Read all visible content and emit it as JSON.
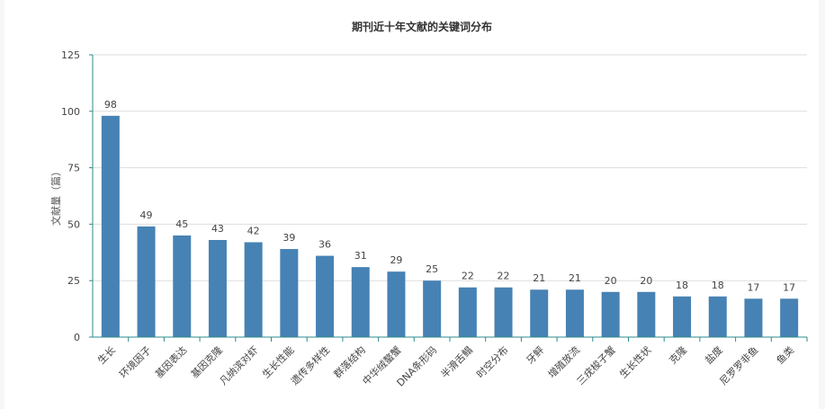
{
  "chart_data": {
    "type": "bar",
    "title": "期刊近十年文献的关键词分布",
    "xlabel": "",
    "ylabel": "文献量（篇）",
    "ylim": [
      0,
      125
    ],
    "yticks": [
      0,
      25,
      50,
      75,
      100,
      125
    ],
    "grid": true,
    "legend": "none",
    "show_data_labels": true,
    "categories": [
      "生长",
      "环境因子",
      "基因表达",
      "基因克隆",
      "凡纳滨对虾",
      "生长性能",
      "遗传多样性",
      "群落结构",
      "中华绒螯蟹",
      "DNA条形码",
      "半滑舌鳎",
      "时空分布",
      "牙鲆",
      "增殖放流",
      "三疣梭子蟹",
      "生长性状",
      "克隆",
      "盐度",
      "尼罗罗非鱼",
      "鱼类"
    ],
    "values": [
      98,
      49,
      45,
      43,
      42,
      39,
      36,
      31,
      29,
      25,
      22,
      22,
      21,
      21,
      20,
      20,
      18,
      18,
      17,
      17
    ]
  },
  "colors": {
    "bar": "#4682b4",
    "axis": "#2e8b8b",
    "grid": "#dddddd"
  }
}
